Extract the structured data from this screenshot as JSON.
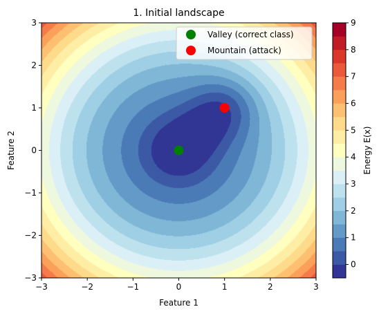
{
  "chart_data": {
    "type": "contour",
    "title": "1. Initial landscape",
    "xlabel": "Feature 1",
    "ylabel": "Feature 2",
    "xlim": [
      -3,
      3
    ],
    "ylim": [
      -3,
      3
    ],
    "x_ticks": [
      "−3",
      "−2",
      "−1",
      "0",
      "1",
      "2",
      "3"
    ],
    "x_tick_values": [
      -3,
      -2,
      -1,
      0,
      1,
      2,
      3
    ],
    "y_ticks": [
      "−3",
      "−2",
      "−1",
      "0",
      "1",
      "2",
      "3"
    ],
    "y_tick_values": [
      -3,
      -2,
      -1,
      0,
      1,
      2,
      3
    ],
    "grid": false,
    "colormap": "RdYlBu_r",
    "contour_levels": [
      -0.5,
      0,
      0.5,
      1,
      1.5,
      2,
      2.5,
      3,
      3.5,
      4,
      4.5,
      5,
      5.5,
      6,
      6.5,
      7,
      7.5,
      8,
      8.5,
      9
    ],
    "colorbar": {
      "label": "Energy E(x)",
      "ticks": [
        "0",
        "1",
        "2",
        "3",
        "4",
        "5",
        "6",
        "7",
        "8",
        "9"
      ],
      "tick_values": [
        0,
        1,
        2,
        3,
        4,
        5,
        6,
        7,
        8,
        9
      ],
      "range": [
        -0.5,
        9
      ]
    },
    "points": [
      {
        "name": "Valley (correct class)",
        "x": 0,
        "y": 0,
        "color": "#008000"
      },
      {
        "name": "Mountain (attack)",
        "x": 1,
        "y": 1,
        "color": "#ff0000"
      }
    ],
    "legend": {
      "position": "top-right",
      "entries": [
        {
          "label": "Valley (correct class)",
          "color": "#008000"
        },
        {
          "label": "Mountain (attack)",
          "color": "#ff0000"
        }
      ]
    }
  }
}
